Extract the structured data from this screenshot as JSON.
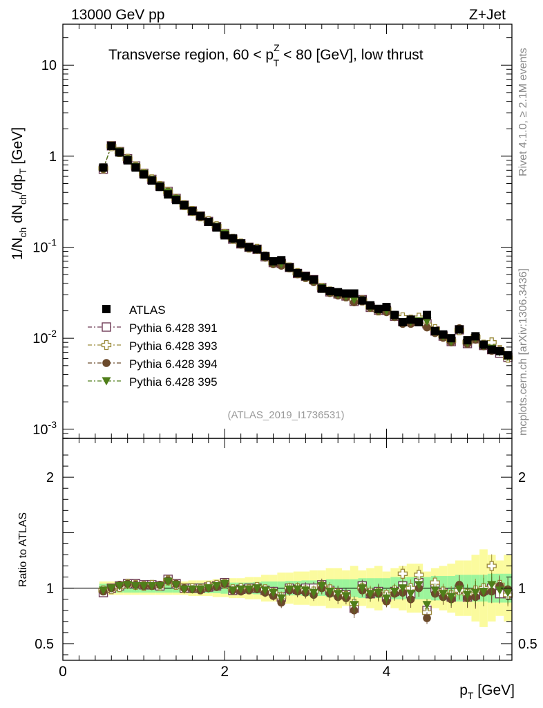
{
  "header": {
    "energy_label": "13000 GeV pp",
    "process_label": "Z+Jet"
  },
  "side_labels": {
    "rivet": "Rivet 4.1.0, ≥ 2.1M events",
    "mcplots": "mcplots.cern.ch [arXiv:1306.3436]"
  },
  "analysis_id": "(ATLAS_2019_I1736531)",
  "chart_data": {
    "type": "scatter",
    "title_parts": {
      "pre": "Transverse region, 60 < p",
      "sup": "Z",
      "sub": "T",
      "post": " < 80 [GeV], low thrust"
    },
    "ylabel_main": "1/N_ch dN_ch/dp_T [GeV]",
    "ylabel_ratio": "Ratio to ATLAS",
    "xlabel": "p_T [GeV]",
    "xlim": [
      0,
      5.55
    ],
    "ylim_main_log10": [
      -3.1,
      1.45
    ],
    "ylim_ratio": [
      0.35,
      2.35
    ],
    "x_ticks": [
      0,
      2,
      4
    ],
    "y_ticks_main": [
      "10^-3",
      "10^-2",
      "10^-1",
      "1",
      "10"
    ],
    "y_ticks_ratio": [
      "0.5",
      "1",
      "2"
    ],
    "x": [
      0.5,
      0.6,
      0.7,
      0.8,
      0.9,
      1.0,
      1.1,
      1.2,
      1.3,
      1.4,
      1.5,
      1.6,
      1.7,
      1.8,
      1.9,
      2.0,
      2.1,
      2.2,
      2.3,
      2.4,
      2.5,
      2.6,
      2.7,
      2.8,
      2.9,
      3.0,
      3.1,
      3.2,
      3.3,
      3.4,
      3.5,
      3.6,
      3.7,
      3.8,
      3.9,
      4.0,
      4.1,
      4.2,
      4.3,
      4.4,
      4.5,
      4.6,
      4.7,
      4.8,
      4.9,
      5.0,
      5.1,
      5.2,
      5.3,
      5.4,
      5.5
    ],
    "atlas": [
      0.75,
      1.3,
      1.1,
      0.9,
      0.75,
      0.63,
      0.54,
      0.46,
      0.38,
      0.33,
      0.29,
      0.25,
      0.22,
      0.19,
      0.165,
      0.135,
      0.125,
      0.11,
      0.1,
      0.095,
      0.08,
      0.07,
      0.072,
      0.06,
      0.052,
      0.048,
      0.044,
      0.035,
      0.033,
      0.032,
      0.031,
      0.031,
      0.026,
      0.023,
      0.021,
      0.022,
      0.018,
      0.015,
      0.016,
      0.015,
      0.018,
      0.012,
      0.011,
      0.01,
      0.0125,
      0.0095,
      0.0105,
      0.0085,
      0.0075,
      0.0072,
      0.0065
    ],
    "atlas_band_inner": [
      0.04,
      0.04,
      0.04,
      0.04,
      0.04,
      0.04,
      0.04,
      0.04,
      0.04,
      0.04,
      0.04,
      0.045,
      0.045,
      0.045,
      0.045,
      0.05,
      0.05,
      0.05,
      0.05,
      0.055,
      0.06,
      0.06,
      0.06,
      0.065,
      0.065,
      0.07,
      0.07,
      0.07,
      0.08,
      0.08,
      0.08,
      0.08,
      0.09,
      0.09,
      0.09,
      0.09,
      0.1,
      0.1,
      0.1,
      0.1,
      0.1,
      0.11,
      0.11,
      0.11,
      0.12,
      0.12,
      0.12,
      0.12,
      0.13,
      0.13,
      0.13
    ],
    "atlas_band_outer": [
      0.06,
      0.06,
      0.06,
      0.06,
      0.06,
      0.06,
      0.06,
      0.06,
      0.06,
      0.06,
      0.06,
      0.07,
      0.07,
      0.07,
      0.08,
      0.08,
      0.09,
      0.09,
      0.1,
      0.1,
      0.12,
      0.12,
      0.14,
      0.14,
      0.15,
      0.15,
      0.16,
      0.16,
      0.18,
      0.18,
      0.16,
      0.2,
      0.16,
      0.18,
      0.2,
      0.15,
      0.18,
      0.2,
      0.22,
      0.22,
      0.15,
      0.18,
      0.2,
      0.22,
      0.25,
      0.25,
      0.3,
      0.35,
      0.3,
      0.25,
      0.3
    ],
    "series": [
      {
        "name": "Pythia 6.428 391",
        "marker": "open-square",
        "color": "#6e3a55",
        "ratio": [
          0.96,
          1.0,
          1.02,
          1.04,
          1.04,
          1.03,
          1.03,
          1.02,
          1.08,
          1.04,
          1.0,
          1.0,
          1.0,
          1.01,
          1.02,
          1.05,
          0.98,
          0.99,
          1.0,
          1.0,
          0.98,
          0.97,
          0.92,
          1.0,
          0.99,
          1.0,
          1.0,
          1.03,
          0.98,
          0.96,
          0.94,
          0.82,
          1.02,
          0.95,
          0.97,
          0.92,
          0.97,
          1.02,
          0.95,
          1.05,
          0.8,
          1.0,
          0.96,
          0.92,
          0.99,
          0.92,
          0.94,
          0.98,
          1.0,
          0.95,
          0.95
        ]
      },
      {
        "name": "Pythia 6.428 393",
        "marker": "open-cross",
        "color": "#9a8a3a",
        "ratio": [
          0.98,
          0.99,
          1.01,
          1.04,
          1.03,
          1.02,
          1.03,
          1.02,
          1.07,
          1.03,
          1.0,
          1.0,
          0.99,
          1.02,
          1.03,
          1.04,
          0.99,
          1.0,
          0.99,
          1.01,
          0.99,
          0.96,
          0.92,
          1.0,
          1.0,
          0.98,
          0.97,
          1.02,
          0.99,
          0.95,
          0.93,
          0.86,
          1.0,
          0.96,
          0.96,
          0.94,
          0.98,
          1.13,
          1.0,
          1.12,
          0.78,
          1.05,
          0.97,
          0.94,
          0.98,
          0.95,
          0.98,
          1.0,
          1.2,
          1.03,
          0.94
        ]
      },
      {
        "name": "Pythia 6.428 394",
        "marker": "filled-circle",
        "color": "#6b4a2b",
        "ratio": [
          0.97,
          1.0,
          1.03,
          1.04,
          1.03,
          1.02,
          1.02,
          1.03,
          1.07,
          1.04,
          1.0,
          0.99,
          0.98,
          1.0,
          1.01,
          1.04,
          0.98,
          0.97,
          0.98,
          0.99,
          0.96,
          0.93,
          0.87,
          0.98,
          0.97,
          0.96,
          0.94,
          1.0,
          0.95,
          0.92,
          0.91,
          0.8,
          0.98,
          0.94,
          0.95,
          0.88,
          0.95,
          0.96,
          0.9,
          1.0,
          0.73,
          0.95,
          0.92,
          0.9,
          1.03,
          0.91,
          0.92,
          0.96,
          0.97,
          1.02,
          0.99
        ]
      },
      {
        "name": "Pythia 6.428 395",
        "marker": "filled-triangle-down",
        "color": "#4f7e1a",
        "ratio": [
          0.98,
          1.0,
          1.02,
          1.03,
          1.02,
          1.02,
          1.02,
          1.02,
          1.06,
          1.03,
          0.99,
          0.99,
          0.99,
          1.0,
          1.02,
          1.04,
          0.98,
          0.99,
          0.99,
          1.0,
          0.98,
          0.96,
          0.91,
          0.99,
          0.99,
          0.98,
          0.96,
          1.02,
          0.97,
          0.95,
          0.93,
          0.85,
          1.0,
          0.95,
          0.96,
          0.91,
          0.97,
          1.0,
          0.95,
          1.03,
          0.85,
          0.98,
          0.95,
          0.92,
          0.99,
          0.94,
          0.96,
          0.97,
          1.03,
          0.98,
          0.96
        ]
      }
    ],
    "legend": {
      "data_label": "ATLAS",
      "placement": "left-center"
    }
  },
  "colors": {
    "band_inner": "#9cf59c",
    "band_outer": "#fbfb9e",
    "side_text": "#888888",
    "analysis_text": "#999999"
  }
}
